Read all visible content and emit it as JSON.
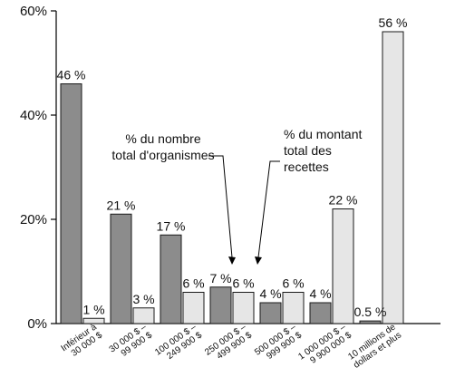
{
  "chart_data": {
    "type": "bar",
    "title": "",
    "xlabel": "",
    "ylabel": "",
    "ylim": [
      0,
      60
    ],
    "yticks": [
      "0%",
      "20%",
      "40%",
      "60%"
    ],
    "grid": false,
    "categories": [
      [
        "Inférieur à",
        "30 000 $"
      ],
      [
        "30 000 $ –",
        "99 900 $"
      ],
      [
        "100 000 $ –",
        "249 900 $"
      ],
      [
        "250 000 $ –",
        "499 900 $"
      ],
      [
        "500 000 $ –",
        "999 900 $"
      ],
      [
        "1 000 000 $ –",
        "9 900 000 $"
      ],
      [
        "10 millions de",
        "dollars et plus"
      ]
    ],
    "series": [
      {
        "values": [
          46,
          21,
          17,
          7,
          4,
          4,
          0.5
        ],
        "labels": [
          "46 %",
          "21 %",
          "17 %",
          "7 %",
          "4 %",
          "4 %",
          "0.5 %"
        ],
        "color": "#8c8c8c"
      },
      {
        "values": [
          1,
          3,
          6,
          6,
          6,
          22,
          56
        ],
        "labels": [
          "1 %",
          "3 %",
          "6 %",
          "6 %",
          "6 %",
          "22 %",
          "56 %"
        ],
        "color": "#e6e6e6"
      }
    ],
    "annotations": [
      {
        "lines": [
          "% du nombre",
          "total d'organismes"
        ],
        "points_to": "series-0"
      },
      {
        "lines": [
          "% du montant",
          "total des",
          "recettes"
        ],
        "points_to": "series-1"
      }
    ]
  }
}
